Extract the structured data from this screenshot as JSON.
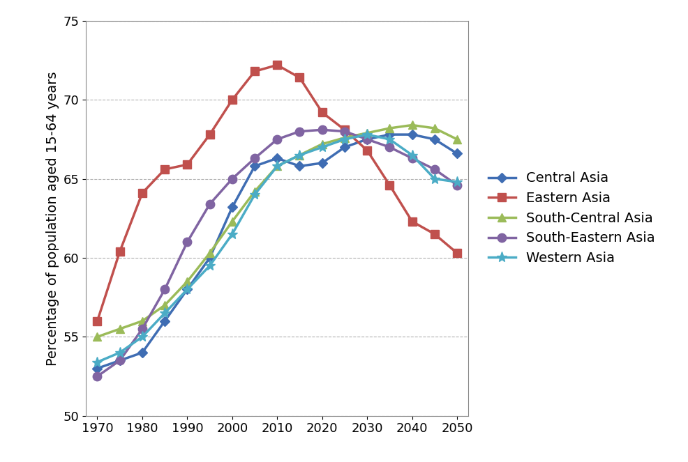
{
  "chart_data": {
    "type": "line",
    "y_label": "Percentage of population aged 15-64 years",
    "categories": [
      "1970",
      null,
      "1980",
      null,
      "1990",
      null,
      "2000",
      null,
      "2010",
      null,
      "2020",
      null,
      "2030",
      null,
      "2040",
      null,
      "2050"
    ],
    "ylim": [
      50,
      75
    ],
    "yticks": [
      50,
      55,
      60,
      65,
      70,
      75
    ],
    "grid": true,
    "legend": "right",
    "series": [
      {
        "name": "Central Asia",
        "color": "#3f6db3",
        "marker": "diamond",
        "values": [
          53.0,
          53.5,
          54.0,
          56.0,
          58.0,
          60.0,
          63.2,
          65.8,
          66.3,
          65.8,
          66.0,
          67.0,
          67.5,
          67.8,
          67.8,
          67.5,
          66.6
        ]
      },
      {
        "name": "Eastern Asia",
        "color": "#c0504d",
        "marker": "square",
        "values": [
          56.0,
          60.4,
          64.1,
          65.6,
          65.9,
          67.8,
          70.0,
          71.8,
          72.2,
          71.4,
          69.2,
          68.1,
          66.8,
          64.6,
          62.3,
          61.5,
          60.3
        ]
      },
      {
        "name": "South-Central Asia",
        "color": "#9bbb59",
        "marker": "triangle",
        "values": [
          55.0,
          55.5,
          56.0,
          57.0,
          58.5,
          60.3,
          62.3,
          64.2,
          65.8,
          66.5,
          67.2,
          67.6,
          67.9,
          68.2,
          68.4,
          68.2,
          67.5
        ]
      },
      {
        "name": "South-Eastern Asia",
        "color": "#8064a2",
        "marker": "circle",
        "values": [
          52.5,
          53.5,
          55.5,
          58.0,
          61.0,
          63.4,
          65.0,
          66.3,
          67.5,
          68.0,
          68.1,
          68.0,
          67.5,
          67.0,
          66.3,
          65.6,
          64.6
        ]
      },
      {
        "name": "Western Asia",
        "color": "#4bacc6",
        "marker": "star",
        "values": [
          53.4,
          54.0,
          55.0,
          56.5,
          58.0,
          59.5,
          61.5,
          64.0,
          65.8,
          66.5,
          67.0,
          67.5,
          67.8,
          67.5,
          66.5,
          65.0,
          64.8
        ]
      }
    ]
  }
}
